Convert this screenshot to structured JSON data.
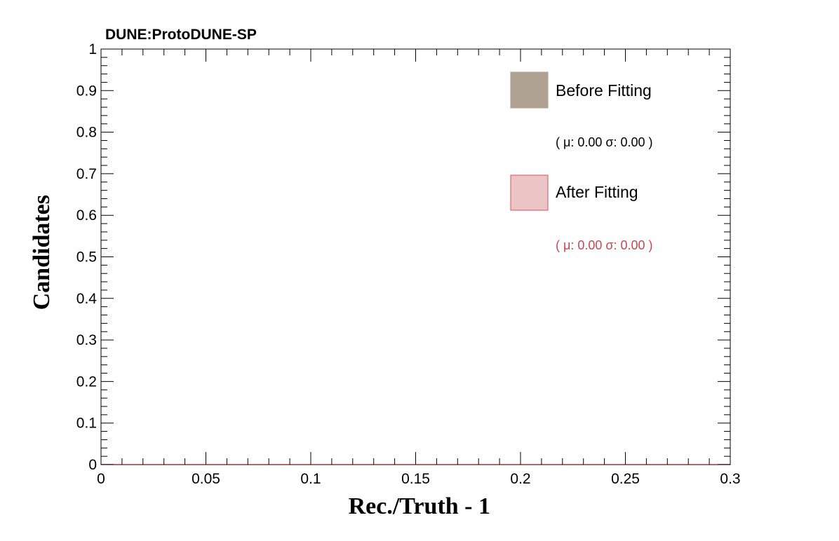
{
  "header": {
    "label": "DUNE:ProtoDUNE-SP"
  },
  "chart_data": {
    "type": "bar",
    "xlabel": "Rec./Truth - 1",
    "ylabel": "Candidates",
    "xlim": [
      0,
      0.3
    ],
    "ylim": [
      0,
      1
    ],
    "x_ticks": [
      "0",
      "0.05",
      "0.1",
      "0.15",
      "0.2",
      "0.25",
      "0.3"
    ],
    "y_ticks": [
      "0",
      "0.1",
      "0.2",
      "0.3",
      "0.4",
      "0.5",
      "0.6",
      "0.7",
      "0.8",
      "0.9",
      "1"
    ],
    "grid": false,
    "legend_position": "top-right",
    "series": [
      {
        "name": "Before Fitting",
        "annotation": "( μ: 0.00  σ: 0.00 )",
        "fill": "#b0a292",
        "line": "#b0a292",
        "text_color": "#000000",
        "values": []
      },
      {
        "name": "After Fitting",
        "annotation": "( μ: 0.00  σ: 0.00 )",
        "fill": "#ebc4c6",
        "line": "#d9535b",
        "text_color": "#c8484f",
        "values": []
      }
    ]
  }
}
